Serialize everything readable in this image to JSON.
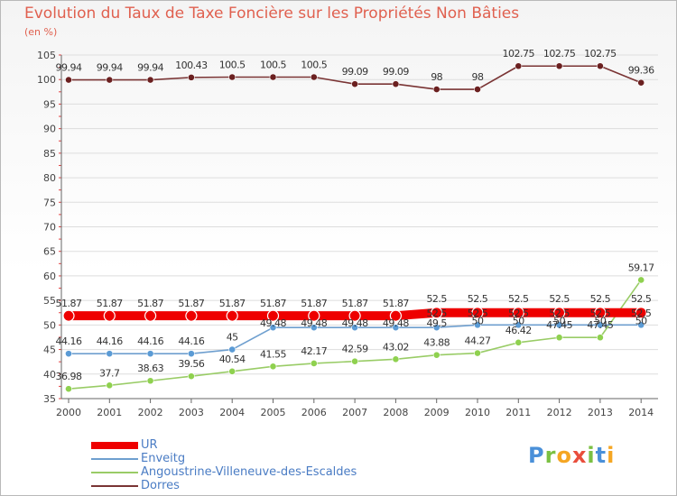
{
  "chart_data": {
    "type": "line",
    "title": "Evolution du Taux de Taxe Foncière sur les Propriétés Non Bâties",
    "ylabel": "(en %)",
    "xlabel": "",
    "ylim": [
      35,
      105
    ],
    "yticks": [
      35,
      40,
      45,
      50,
      55,
      60,
      65,
      70,
      75,
      80,
      85,
      90,
      95,
      100,
      105
    ],
    "categories": [
      "2000",
      "2001",
      "2002",
      "2003",
      "2004",
      "2005",
      "2006",
      "2007",
      "2008",
      "2009",
      "2010",
      "2011",
      "2012",
      "2013",
      "2014"
    ],
    "series": [
      {
        "name": "Angoustrine-Villeneuve-des-Escaldes",
        "color": "#99cc66",
        "marker_color": "#8fd14f",
        "values": [
          36.98,
          37.7,
          38.63,
          39.56,
          40.54,
          41.55,
          42.17,
          42.59,
          43.02,
          43.88,
          44.27,
          46.42,
          47.45,
          47.45,
          59.17
        ],
        "labels": [
          "36.98",
          "37.7",
          "38.63",
          "39.56",
          "40.54",
          "41.55",
          "42.17",
          "42.59",
          "43.02",
          "43.88",
          "44.27",
          "46.42",
          "47.45",
          "47.45",
          "59.17"
        ]
      },
      {
        "name": "Enveitg",
        "color": "#6e9fcf",
        "marker_color": "#5b9bd5",
        "values": [
          44.16,
          44.16,
          44.16,
          44.16,
          45,
          49.48,
          49.48,
          49.48,
          49.48,
          49.48,
          50,
          50,
          50,
          50,
          50
        ],
        "labels": [
          "44.16",
          "44.16",
          "44.16",
          "44.16",
          "45",
          "49.48",
          "49.48",
          "49.48",
          "49.48",
          "49.5",
          "50",
          "50",
          "50",
          "50",
          "50"
        ]
      },
      {
        "name": "UR",
        "color": "#ee0000",
        "marker_color": "#ee0000",
        "values": [
          51.87,
          51.87,
          51.87,
          51.87,
          51.87,
          51.87,
          51.87,
          51.87,
          51.87,
          52.5,
          52.5,
          52.5,
          52.5,
          52.5,
          52.5
        ],
        "labels": [
          "51.87",
          "51.87",
          "51.87",
          "51.87",
          "51.87",
          "51.87",
          "51.87",
          "51.87",
          "51.87",
          "52.5",
          "52.5",
          "52.5",
          "52.5",
          "52.5",
          "52.5"
        ]
      },
      {
        "name": "Dorres",
        "color": "#7a3434",
        "marker_color": "#6b2020",
        "values": [
          99.94,
          99.94,
          99.94,
          100.43,
          100.5,
          100.5,
          100.5,
          99.09,
          99.09,
          98,
          98,
          102.75,
          102.75,
          102.75,
          99.36
        ],
        "labels": [
          "99.94",
          "99.94",
          "99.94",
          "100.43",
          "100.5",
          "100.5",
          "100.5",
          "99.09",
          "99.09",
          "98",
          "98",
          "102.75",
          "102.75",
          "102.75",
          "99.36"
        ]
      }
    ],
    "legend": [
      "UR",
      "Enveitg",
      "Angoustrine-Villeneuve-des-Escaldes",
      "Dorres"
    ],
    "legend_position": "bottom-left"
  },
  "logo": {
    "letters": [
      "P",
      "r",
      "o",
      "x",
      "i",
      "t",
      "i"
    ],
    "colors": [
      "#4a90d9",
      "#7bc043",
      "#f5a623",
      "#e94e3c",
      "#7bc043",
      "#4a90d9",
      "#f5a623"
    ]
  }
}
